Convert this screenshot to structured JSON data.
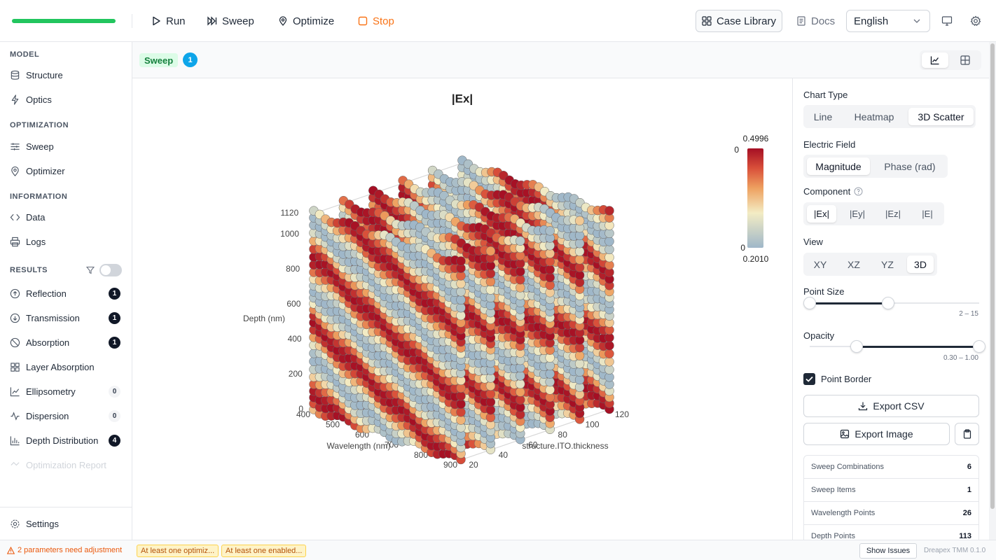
{
  "toolbar": {
    "run": "Run",
    "sweep": "Sweep",
    "optimize": "Optimize",
    "stop": "Stop",
    "case_library": "Case Library",
    "docs": "Docs",
    "language": "English"
  },
  "sidebar": {
    "model": {
      "title": "MODEL",
      "items": [
        "Structure",
        "Optics"
      ]
    },
    "optimization": {
      "title": "OPTIMIZATION",
      "items": [
        "Sweep",
        "Optimizer"
      ]
    },
    "information": {
      "title": "INFORMATION",
      "items": [
        "Data",
        "Logs"
      ]
    },
    "results": {
      "title": "RESULTS",
      "items": [
        {
          "label": "Reflection",
          "count": 1
        },
        {
          "label": "Transmission",
          "count": 1
        },
        {
          "label": "Absorption",
          "count": 1
        },
        {
          "label": "Layer Absorption"
        },
        {
          "label": "Ellipsometry",
          "count": 0
        },
        {
          "label": "Dispersion",
          "count": 0
        },
        {
          "label": "Depth Distribution",
          "count": 4
        },
        {
          "label": "Optimization Report"
        }
      ]
    },
    "settings": "Settings"
  },
  "tab": {
    "label": "Sweep",
    "count": 1
  },
  "plot": {
    "title": "|Ex|",
    "z_axis": {
      "title": "Depth (nm)",
      "ticks": [
        0,
        200,
        400,
        600,
        800,
        1000,
        1120
      ]
    },
    "x_axis": {
      "title": "Wavelength (nm)",
      "ticks": [
        400,
        500,
        600,
        700,
        800,
        900
      ]
    },
    "y_axis": {
      "title": "structure.ITO.thickness",
      "ticks": [
        20,
        40,
        60,
        80,
        100,
        120
      ]
    },
    "colorbar": {
      "max": 0.4996,
      "min": "0.2010",
      "max_tick": 0,
      "min_tick": 0
    }
  },
  "panel": {
    "chart_type": {
      "label": "Chart Type",
      "options": [
        "Line",
        "Heatmap",
        "3D Scatter"
      ]
    },
    "electric_field": {
      "label": "Electric Field",
      "options": [
        "Magnitude",
        "Phase (rad)"
      ]
    },
    "component": {
      "label": "Component",
      "options": [
        "|Ex|",
        "|Ey|",
        "|Ez|",
        "|E|"
      ]
    },
    "view": {
      "label": "View",
      "options": [
        "XY",
        "XZ",
        "YZ",
        "3D"
      ]
    },
    "point_size": {
      "label": "Point Size",
      "range": "2 – 15"
    },
    "opacity": {
      "label": "Opacity",
      "range": "0.30 – 1.00"
    },
    "point_border": "Point Border",
    "export_csv": "Export CSV",
    "export_image": "Export Image",
    "stats": [
      {
        "label": "Sweep Combinations",
        "value": 6
      },
      {
        "label": "Sweep Items",
        "value": 1
      },
      {
        "label": "Wavelength Points",
        "value": 26
      },
      {
        "label": "Depth Points",
        "value": 113
      }
    ]
  },
  "status": {
    "warning": "2 parameters need adjustment",
    "chips": [
      "At least one optimiz...",
      "At least one enabled..."
    ],
    "show_issues": "Show Issues",
    "version": "Dreapex TMM 0.1.0"
  }
}
